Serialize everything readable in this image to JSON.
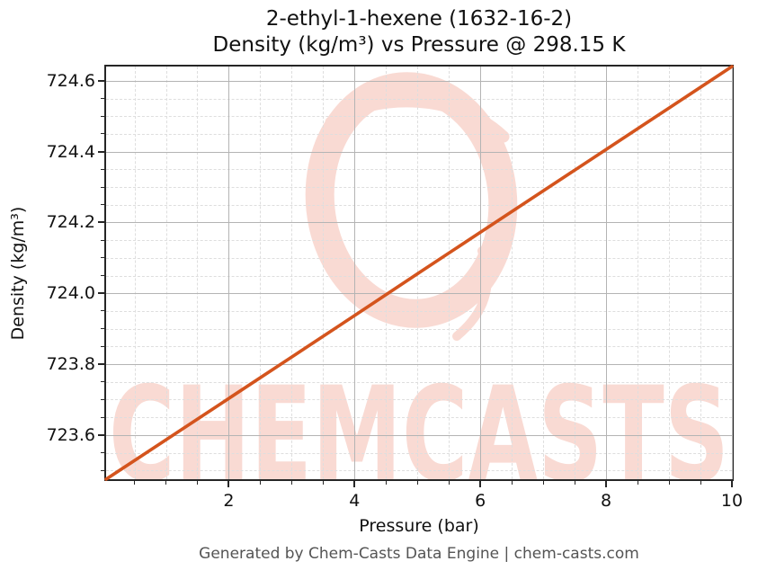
{
  "title": {
    "line1": "2-ethyl-1-hexene (1632-16-2)",
    "line2": "Density (kg/m³) vs Pressure @ 298.15 K"
  },
  "watermark": {
    "text": "CHEMCASTS",
    "color": "#f9dad3",
    "shape": "brush-ring"
  },
  "footer": {
    "text": "Generated by Chem-Casts Data Engine | chem-casts.com"
  },
  "chart_data": {
    "type": "line",
    "title": "2-ethyl-1-hexene (1632-16-2)\nDensity (kg/m³) vs Pressure @ 298.15 K",
    "xlabel": "Pressure (bar)",
    "ylabel": "Density (kg/m³)",
    "xlim": [
      0.05,
      10.0
    ],
    "ylim": [
      723.475,
      724.64
    ],
    "x_major_ticks": [
      2,
      4,
      6,
      8,
      10
    ],
    "x_tick_labels": [
      "2",
      "4",
      "6",
      "8",
      "10"
    ],
    "x_minor_tick_step": 0.5,
    "y_major_ticks": [
      723.6,
      723.8,
      724.0,
      724.2,
      724.4,
      724.6
    ],
    "y_tick_labels": [
      "723.6",
      "723.8",
      "724.0",
      "724.2",
      "724.4",
      "724.6"
    ],
    "y_minor_tick_step": 0.05,
    "grid": {
      "major_style": "solid gray",
      "minor_style": "dashed light-gray"
    },
    "legend": null,
    "series": [
      {
        "name": "Density vs Pressure @ 298.15 K",
        "color": "#d4541d",
        "x": [
          0.05,
          1,
          2,
          3,
          4,
          5,
          6,
          7,
          8,
          9,
          10
        ],
        "y": [
          723.475,
          723.586,
          723.703,
          723.82,
          723.937,
          724.055,
          724.172,
          724.289,
          724.406,
          724.523,
          724.64
        ]
      }
    ]
  }
}
